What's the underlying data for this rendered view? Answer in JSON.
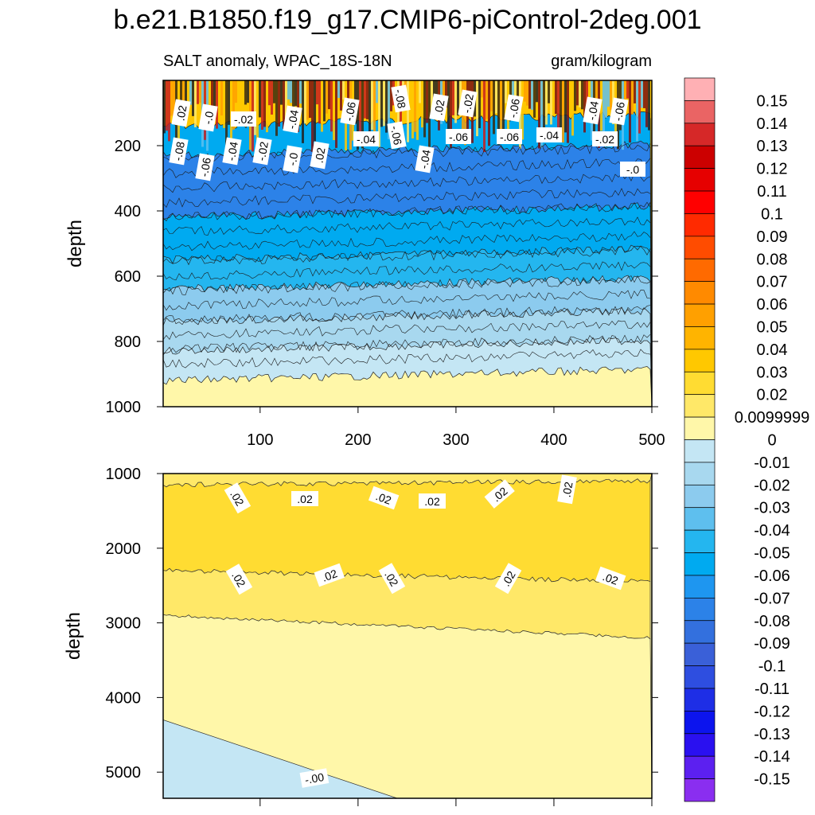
{
  "title": "b.e21.B1850.f19_g17.CMIP6-piControl-2deg.001",
  "subtitle_left": "SALT anomaly, WPAC_18S-18N",
  "subtitle_right": "gram/kilogram",
  "chart_data": [
    {
      "type": "heatmap",
      "panel": "upper",
      "ylabel": "depth",
      "xlabel": "",
      "xlim": [
        1,
        500
      ],
      "ylim": [
        1000,
        0
      ],
      "x_ticks": [
        "100",
        "200",
        "300",
        "400",
        "500"
      ],
      "y_ticks": [
        "200",
        "400",
        "600",
        "800",
        "1000"
      ],
      "layers": [
        {
          "depth_top": 0,
          "depth_bottom": 140,
          "value": 0.03,
          "pattern": "noisy"
        },
        {
          "depth_top": 140,
          "depth_bottom": 230,
          "value": -0.06
        },
        {
          "depth_top": 230,
          "depth_bottom": 420,
          "value": -0.075
        },
        {
          "depth_top": 420,
          "depth_bottom": 550,
          "value": -0.055
        },
        {
          "depth_top": 550,
          "depth_bottom": 640,
          "value": -0.045
        },
        {
          "depth_top": 640,
          "depth_bottom": 740,
          "value": -0.03
        },
        {
          "depth_top": 740,
          "depth_bottom": 830,
          "value": -0.02
        },
        {
          "depth_top": 830,
          "depth_bottom": 920,
          "value": -0.01
        },
        {
          "depth_top": 920,
          "depth_bottom": 1000,
          "value": 0.005
        }
      ],
      "contour_labels": [
        ".02",
        "-.0",
        "-.02",
        "-.04",
        "-.06",
        "-.08",
        ".02",
        "-.02",
        "-.06",
        "-.04",
        "-.06",
        "-.08",
        "-.06",
        "-.04",
        "-.02",
        "-.0",
        ".02",
        "-.04",
        "-.06",
        "-.04",
        "-.06",
        "-.06",
        "-.04",
        "-.02",
        "-.0"
      ]
    },
    {
      "type": "heatmap",
      "panel": "lower",
      "ylabel": "depth",
      "xlabel": "",
      "xlim": [
        1,
        500
      ],
      "ylim": [
        5350,
        1000
      ],
      "y_ticks": [
        "1000",
        "2000",
        "3000",
        "4000",
        "5000"
      ],
      "layers": [
        {
          "region": "1000–1300 m",
          "value": 0.015
        },
        {
          "region": "1300–2300 m",
          "value": 0.025
        },
        {
          "region": "2300–3000 m (deepening to 3200 m at x=500)",
          "value": 0.015
        },
        {
          "region": "below 3000 m",
          "value": 0.005
        },
        {
          "region": "deep lower-left corner, below 4300 m at x=0 sloping to 5350 m at x=240",
          "value": -0.005
        }
      ],
      "contour_labels": [
        ".02",
        ".02",
        ".02",
        ".02",
        ".02",
        ".02",
        ".02",
        ".02",
        ".02",
        ".02",
        ".02",
        "-.00"
      ]
    }
  ],
  "colorbar": {
    "labels": [
      "0.15",
      "0.14",
      "0.13",
      "0.12",
      "0.11",
      "0.1",
      "0.09",
      "0.08",
      "0.07",
      "0.06",
      "0.05",
      "0.04",
      "0.03",
      "0.02",
      "0.0099999",
      "0",
      "-0.01",
      "-0.02",
      "-0.03",
      "-0.04",
      "-0.05",
      "-0.06",
      "-0.07",
      "-0.08",
      "-0.09",
      "-0.1",
      "-0.11",
      "-0.12",
      "-0.13",
      "-0.14",
      "-0.15"
    ],
    "colors": [
      "#ffb0b4",
      "#ea6464",
      "#d62828",
      "#cc0000",
      "#e60000",
      "#ff0000",
      "#ff2a00",
      "#ff4c00",
      "#ff6a00",
      "#ff8a00",
      "#ffa000",
      "#ffb400",
      "#ffc800",
      "#ffdc32",
      "#ffe868",
      "#fff7a9",
      "#c4e6f4",
      "#a8d8ef",
      "#8ccbee",
      "#5ebfee",
      "#24b6ef",
      "#00aaf0",
      "#1e96f0",
      "#2c82e8",
      "#3370de",
      "#3a60d8",
      "#2e4ee0",
      "#1e2ee6",
      "#0c14ee",
      "#2a10f0",
      "#5c20f0",
      "#8a2ef0"
    ]
  }
}
